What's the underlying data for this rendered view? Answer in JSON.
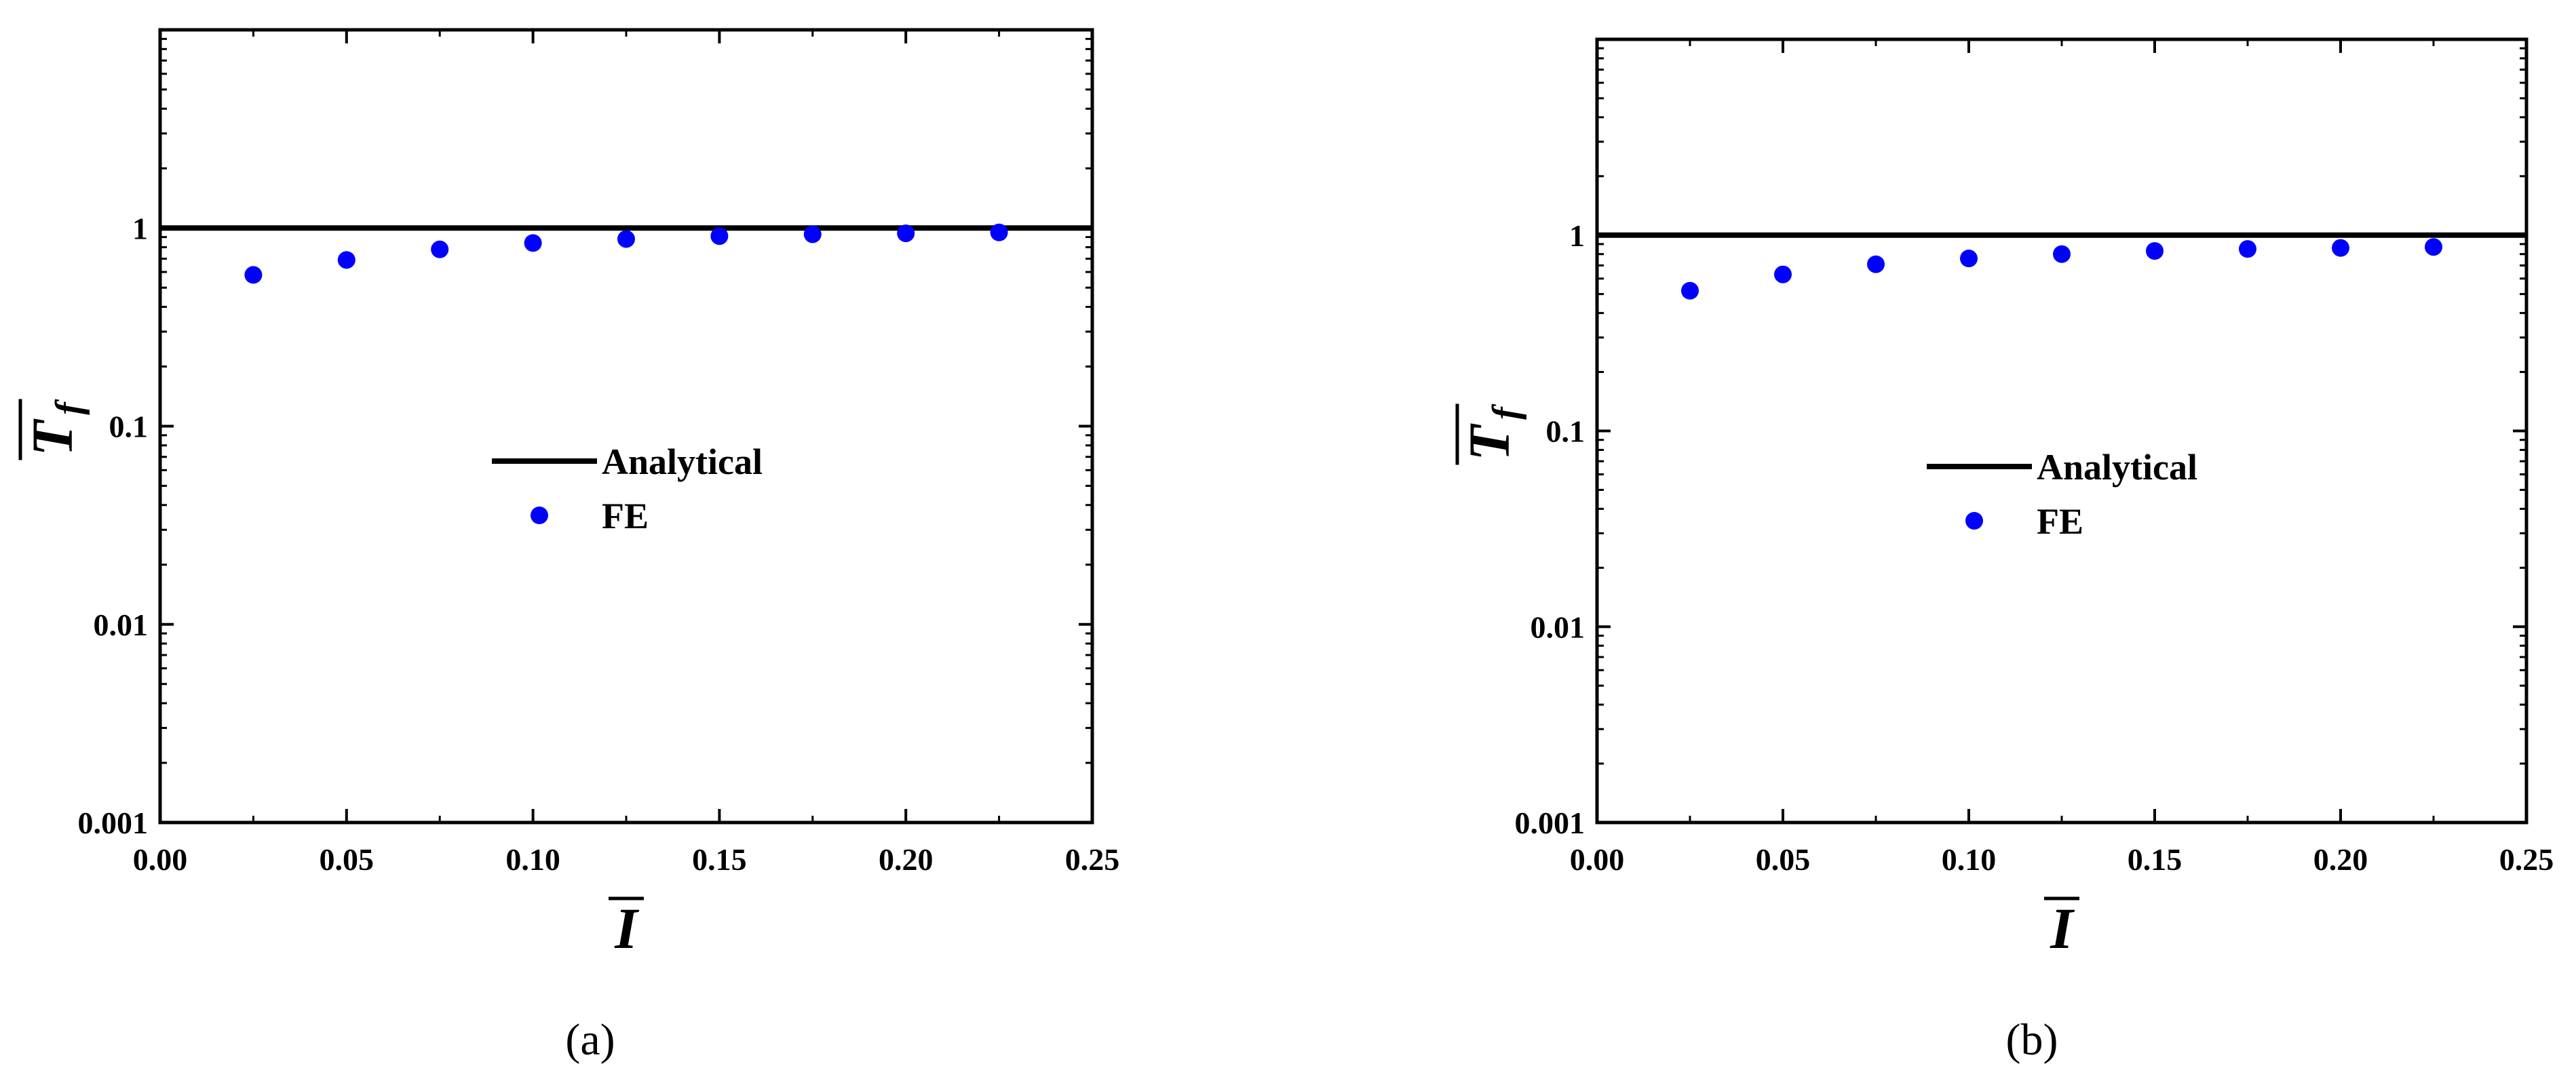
{
  "chart_data": [
    {
      "type": "scatter",
      "panel_label": "(a)",
      "xlabel": "I",
      "ylabel": "T",
      "ylabel_sub": "f",
      "xlim": [
        0,
        0.25
      ],
      "ylim": [
        0.001,
        10
      ],
      "yscale": "log",
      "x_ticks": [
        "0.00",
        "0.05",
        "0.10",
        "0.15",
        "0.20",
        "0.25"
      ],
      "x_tick_values": [
        0,
        0.05,
        0.1,
        0.15,
        0.2,
        0.25
      ],
      "y_ticks": [
        "0.001",
        "0.01",
        "0.1",
        "1"
      ],
      "y_tick_values": [
        0.001,
        0.01,
        0.1,
        1
      ],
      "legend_placement": "center",
      "series": [
        {
          "name": "Analytical",
          "kind": "line",
          "color": "#000000",
          "x": [
            0,
            0.25
          ],
          "y": [
            1.0,
            1.0
          ]
        },
        {
          "name": "FE",
          "kind": "scatter",
          "color": "#0000ff",
          "x": [
            0.025,
            0.05,
            0.075,
            0.1,
            0.125,
            0.15,
            0.175,
            0.2,
            0.225
          ],
          "y": [
            0.58,
            0.69,
            0.78,
            0.84,
            0.88,
            0.91,
            0.93,
            0.94,
            0.95
          ]
        }
      ]
    },
    {
      "type": "scatter",
      "panel_label": "(b)",
      "xlabel": "I",
      "ylabel": "T",
      "ylabel_sub": "f",
      "xlim": [
        0,
        0.25
      ],
      "ylim": [
        0.001,
        10
      ],
      "yscale": "log",
      "x_ticks": [
        "0.00",
        "0.05",
        "0.10",
        "0.15",
        "0.20",
        "0.25"
      ],
      "x_tick_values": [
        0,
        0.05,
        0.1,
        0.15,
        0.2,
        0.25
      ],
      "y_ticks": [
        "0.001",
        "0.01",
        "0.1",
        "1"
      ],
      "y_tick_values": [
        0.001,
        0.01,
        0.1,
        1
      ],
      "legend_placement": "center",
      "series": [
        {
          "name": "Analytical",
          "kind": "line",
          "color": "#000000",
          "x": [
            0,
            0.25
          ],
          "y": [
            1.0,
            1.0
          ]
        },
        {
          "name": "FE",
          "kind": "scatter",
          "color": "#0000ff",
          "x": [
            0.025,
            0.05,
            0.075,
            0.1,
            0.125,
            0.15,
            0.175,
            0.2,
            0.225
          ],
          "y": [
            0.52,
            0.63,
            0.71,
            0.76,
            0.8,
            0.83,
            0.85,
            0.86,
            0.87
          ]
        }
      ]
    }
  ]
}
